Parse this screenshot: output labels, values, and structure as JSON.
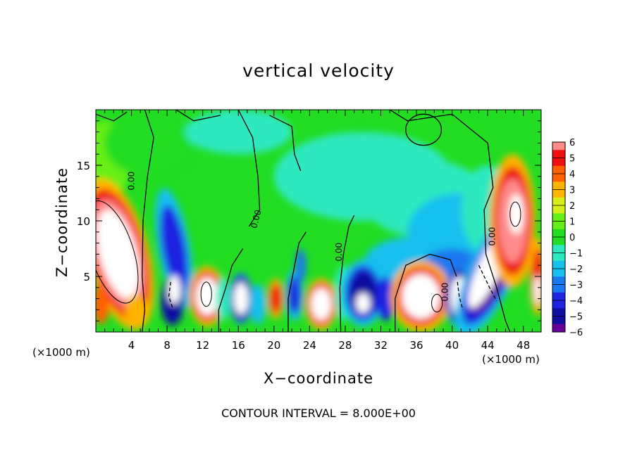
{
  "chart_data": {
    "type": "heatmap",
    "title": "vertical velocity",
    "xlabel": "X−coordinate",
    "ylabel": "Z−coordinate",
    "x_unit_label": "(×1000 m)",
    "xlim": [
      0,
      50
    ],
    "ylim": [
      0,
      20
    ],
    "x_ticks": [
      4,
      8,
      12,
      16,
      20,
      24,
      28,
      32,
      36,
      40,
      44,
      48
    ],
    "y_ticks": [
      5,
      10,
      15
    ],
    "colorbar": {
      "ticks": [
        6,
        5,
        4,
        3,
        2,
        1,
        0,
        -1,
        -2,
        -3,
        -4,
        -5,
        -6
      ],
      "tick_labels": [
        "6",
        "5",
        "4",
        "3",
        "2",
        "1",
        "0",
        "−1",
        "−2",
        "−3",
        "−4",
        "−5",
        "−6"
      ],
      "range": [
        -6,
        6
      ]
    },
    "contour_label": "0.00",
    "footnote": "CONTOUR INTERVAL = 8.000E+00",
    "colors": {
      "background_level": "#22dd22",
      "max": "#ffffff",
      "min": "#660099"
    }
  }
}
